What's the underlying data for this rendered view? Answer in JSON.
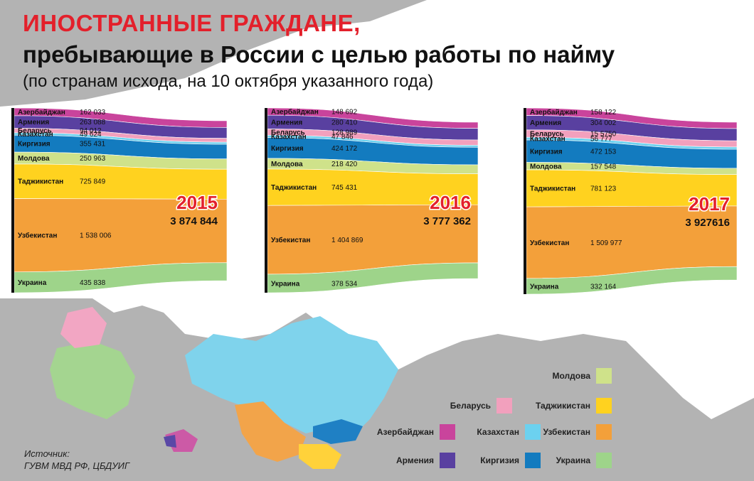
{
  "title": {
    "line1": "ИНОСТРАННЫЕ ГРАЖДАНЕ,",
    "line2": "пребывающие в России с целью работы по найму",
    "line3": "(по странам исхода, на 10 октября указанного года)"
  },
  "colors": {
    "Азербайджан": "#c9449c",
    "Армения": "#5940a0",
    "Беларусь": "#f2a0bd",
    "Казахстан": "#6cd1ef",
    "Киргизия": "#137bbf",
    "Молдова": "#cfe28a",
    "Таджикистан": "#ffd21f",
    "Узбекистан": "#f3a03a",
    "Украина": "#9ed48a"
  },
  "chart_data": [
    {
      "type": "area",
      "year": "2015",
      "total_label": "3 874 844",
      "categories": [
        "Азербайджан",
        "Армения",
        "Беларусь",
        "Казахстан",
        "Киргизия",
        "Молдова",
        "Таджикистан",
        "Узбекистан",
        "Украина"
      ],
      "values": [
        162033,
        263088,
        94012,
        49624,
        355431,
        250963,
        725849,
        1538006,
        435838
      ],
      "value_labels": [
        "162 033",
        "263 088",
        "94 012",
        "49 624",
        "355 431",
        "250 963",
        "725 849",
        "1 538 006",
        "435 838"
      ]
    },
    {
      "type": "area",
      "year": "2016",
      "total_label": "3 777 362",
      "categories": [
        "Азербайджан",
        "Армения",
        "Беларусь",
        "Казахстан",
        "Киргизия",
        "Молдова",
        "Таджикистан",
        "Узбекистан",
        "Украина"
      ],
      "values": [
        148692,
        280410,
        128989,
        47846,
        424172,
        218420,
        745431,
        1404869,
        378534
      ],
      "value_labels": [
        "148 692",
        "280 410",
        "128 989",
        "47 846",
        "424 172",
        "218 420",
        "745 431",
        "1 404 869",
        "378 534"
      ]
    },
    {
      "type": "area",
      "year": "2017",
      "total_label": "3 927616",
      "categories": [
        "Азербайджан",
        "Армения",
        "Беларусь",
        "Казахстан",
        "Киргизия",
        "Молдова",
        "Таджикистан",
        "Узбекистан",
        "Украина"
      ],
      "values": [
        158122,
        304002,
        155750,
        56777,
        472153,
        157548,
        781123,
        1509977,
        332164
      ],
      "value_labels": [
        "158 122",
        "304 002",
        "15 5750",
        "56 777",
        "472 153",
        "157 548",
        "781 123",
        "1 509 977",
        "332 164"
      ]
    }
  ],
  "legend": {
    "items": [
      {
        "name": "Молдова",
        "color": "#cfe28a"
      },
      {
        "name": "Беларусь",
        "color": "#f2a0bd"
      },
      {
        "name": "Таджикистан",
        "color": "#ffd21f"
      },
      {
        "name": "Азербайджан",
        "color": "#c9449c"
      },
      {
        "name": "Казахстан",
        "color": "#6cd1ef"
      },
      {
        "name": "Узбекистан",
        "color": "#f3a03a"
      },
      {
        "name": "Армения",
        "color": "#5940a0"
      },
      {
        "name": "Киргизия",
        "color": "#137bbf"
      },
      {
        "name": "Украина",
        "color": "#9ed48a"
      }
    ]
  },
  "source": {
    "line1": "Источник:",
    "line2": "ГУВМ МВД РФ, ЦБДУИГ"
  }
}
